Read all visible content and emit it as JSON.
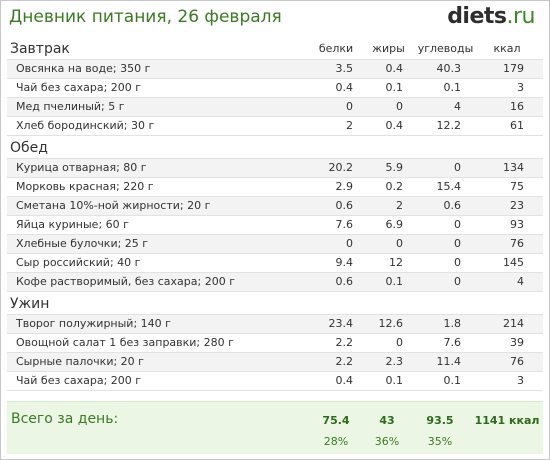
{
  "header": {
    "title": "Дневник питания, 26 февраля",
    "logo_brand": "diets",
    "logo_tld": ".ru"
  },
  "columns": {
    "protein": "белки",
    "fat": "жиры",
    "carbs": "углеводы",
    "kcal": "ккал"
  },
  "meals": [
    {
      "title": "Завтрак",
      "items": [
        {
          "name": "Овсянка на воде; 350 г",
          "protein": "3.5",
          "fat": "0.4",
          "carbs": "40.3",
          "kcal": "179"
        },
        {
          "name": "Чай без сахара; 200 г",
          "protein": "0.4",
          "fat": "0.1",
          "carbs": "0.1",
          "kcal": "3"
        },
        {
          "name": "Мед пчелиный; 5 г",
          "protein": "0",
          "fat": "0",
          "carbs": "4",
          "kcal": "16"
        },
        {
          "name": "Хлеб бородинский; 30 г",
          "protein": "2",
          "fat": "0.4",
          "carbs": "12.2",
          "kcal": "61"
        }
      ]
    },
    {
      "title": "Обед",
      "items": [
        {
          "name": "Курица отварная; 80 г",
          "protein": "20.2",
          "fat": "5.9",
          "carbs": "0",
          "kcal": "134"
        },
        {
          "name": "Морковь красная; 220 г",
          "protein": "2.9",
          "fat": "0.2",
          "carbs": "15.4",
          "kcal": "75"
        },
        {
          "name": "Сметана 10%-ной жирности; 20 г",
          "protein": "0.6",
          "fat": "2",
          "carbs": "0.6",
          "kcal": "23"
        },
        {
          "name": "Яйца куриные; 60 г",
          "protein": "7.6",
          "fat": "6.9",
          "carbs": "0",
          "kcal": "93"
        },
        {
          "name": "Хлебные булочки; 25 г",
          "protein": "0",
          "fat": "0",
          "carbs": "0",
          "kcal": "76"
        },
        {
          "name": "Сыр российский; 40 г",
          "protein": "9.4",
          "fat": "12",
          "carbs": "0",
          "kcal": "145"
        },
        {
          "name": "Кофе растворимый, без сахара; 200 г",
          "protein": "0.6",
          "fat": "0.1",
          "carbs": "0",
          "kcal": "4"
        }
      ]
    },
    {
      "title": "Ужин",
      "items": [
        {
          "name": "Творог полужирный; 140 г",
          "protein": "23.4",
          "fat": "12.6",
          "carbs": "1.8",
          "kcal": "214"
        },
        {
          "name": "Овощной салат 1 без заправки; 280 г",
          "protein": "2.2",
          "fat": "0",
          "carbs": "7.6",
          "kcal": "39"
        },
        {
          "name": "Сырные палочки; 20 г",
          "protein": "2.2",
          "fat": "2.3",
          "carbs": "11.4",
          "kcal": "76"
        },
        {
          "name": "Чай без сахара; 200 г",
          "protein": "0.4",
          "fat": "0.1",
          "carbs": "0.1",
          "kcal": "3"
        }
      ]
    }
  ],
  "totals": {
    "label": "Всего за день:",
    "protein": "75.4",
    "fat": "43",
    "carbs": "93.5",
    "kcal": "1141 ккал",
    "protein_pct": "28%",
    "fat_pct": "36%",
    "carbs_pct": "35%"
  }
}
